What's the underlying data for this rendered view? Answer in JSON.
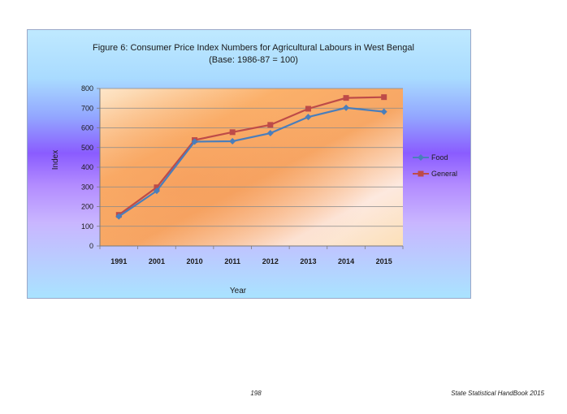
{
  "chart_data": {
    "type": "line",
    "title": "Figure 6: Consumer Price Index Numbers for Agricultural Labours in West Bengal",
    "subtitle": "(Base: 1986-87 = 100)",
    "xlabel": "Year",
    "ylabel": "Index",
    "categories": [
      "1991",
      "2001",
      "2010",
      "2011",
      "2012",
      "2013",
      "2014",
      "2015"
    ],
    "ylim": [
      0,
      800
    ],
    "yticks": [
      0,
      100,
      200,
      300,
      400,
      500,
      600,
      700,
      800
    ],
    "grid": true,
    "legend_position": "right",
    "series": [
      {
        "name": "Food",
        "color": "#4a7ebb",
        "marker": "diamond",
        "values": [
          150,
          280,
          530,
          532,
          573,
          655,
          702,
          682
        ]
      },
      {
        "name": "General",
        "color": "#be4b48",
        "marker": "square",
        "values": [
          158,
          298,
          538,
          578,
          615,
          697,
          752,
          756
        ]
      }
    ]
  },
  "footer": {
    "page_number": "198",
    "book_title": "State Statistical HandBook 2015"
  }
}
